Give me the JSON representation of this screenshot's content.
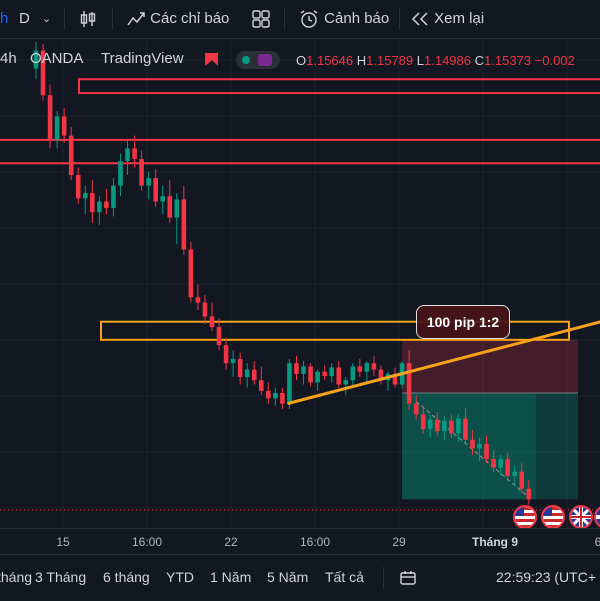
{
  "toolbar": {
    "symbol_fragment": "h",
    "interval": "D",
    "indicators_label": "Các chỉ báo",
    "alert_label": "Cảnh báo",
    "replay_label": "Xem lại"
  },
  "legend": {
    "interval": "4h",
    "source": "OANDA",
    "publisher": "TradingView",
    "open_key": "O",
    "open": "1.15646",
    "high_key": "H",
    "high": "1.15789",
    "low_key": "L",
    "low": "1.14986",
    "close_key": "C",
    "close": "1.15373",
    "change": "−0.002"
  },
  "annotation": {
    "pip_label": "100 pip 1:2"
  },
  "time_axis": [
    "15",
    "16:00",
    "22",
    "16:00",
    "29",
    "Tháng 9",
    "6"
  ],
  "ranges": [
    "tháng",
    "3 Tháng",
    "6 tháng",
    "YTD",
    "1 Năm",
    "5 Năm",
    "Tất cả"
  ],
  "clock": "22:59:23 (UTC+",
  "colors": {
    "up": "#089981",
    "down": "#f23645",
    "zone": "#f23645",
    "trend": "#f7a21b",
    "bg": "#131722"
  },
  "chart_data": {
    "type": "candlestick",
    "candles": [
      [
        1.1615,
        1.164,
        1.1605,
        1.1632
      ],
      [
        1.1632,
        1.1638,
        1.1585,
        1.159
      ],
      [
        1.159,
        1.16,
        1.154,
        1.1548
      ],
      [
        1.1548,
        1.1575,
        1.154,
        1.157
      ],
      [
        1.157,
        1.1578,
        1.1545,
        1.1552
      ],
      [
        1.1552,
        1.156,
        1.151,
        1.1515
      ],
      [
        1.1515,
        1.1522,
        1.1488,
        1.1493
      ],
      [
        1.1493,
        1.1505,
        1.1478,
        1.1498
      ],
      [
        1.1498,
        1.151,
        1.147,
        1.148
      ],
      [
        1.148,
        1.1495,
        1.1468,
        1.149
      ],
      [
        1.149,
        1.1502,
        1.1478,
        1.1484
      ],
      [
        1.1484,
        1.1512,
        1.1476,
        1.1505
      ],
      [
        1.1505,
        1.1535,
        1.1495,
        1.1528
      ],
      [
        1.1528,
        1.1548,
        1.1515,
        1.154
      ],
      [
        1.154,
        1.1552,
        1.1522,
        1.153
      ],
      [
        1.153,
        1.1538,
        1.15,
        1.1505
      ],
      [
        1.1505,
        1.1518,
        1.1492,
        1.1512
      ],
      [
        1.1512,
        1.152,
        1.1485,
        1.149
      ],
      [
        1.149,
        1.1505,
        1.1478,
        1.1495
      ],
      [
        1.1495,
        1.151,
        1.147,
        1.1475
      ],
      [
        1.1475,
        1.1498,
        1.145,
        1.1492
      ],
      [
        1.1492,
        1.1505,
        1.144,
        1.1445
      ],
      [
        1.1445,
        1.1452,
        1.1395,
        1.14
      ],
      [
        1.14,
        1.1412,
        1.1388,
        1.1395
      ],
      [
        1.1395,
        1.1402,
        1.1375,
        1.1382
      ],
      [
        1.1382,
        1.1395,
        1.1368,
        1.1372
      ],
      [
        1.1372,
        1.138,
        1.135,
        1.1355
      ],
      [
        1.1355,
        1.1362,
        1.1332,
        1.1338
      ],
      [
        1.1338,
        1.135,
        1.1325,
        1.1342
      ],
      [
        1.1342,
        1.1348,
        1.1318,
        1.1325
      ],
      [
        1.1325,
        1.1338,
        1.1315,
        1.1332
      ],
      [
        1.1332,
        1.134,
        1.1318,
        1.1322
      ],
      [
        1.1322,
        1.1335,
        1.1308,
        1.1312
      ],
      [
        1.1312,
        1.132,
        1.13,
        1.1305
      ],
      [
        1.1305,
        1.1315,
        1.1298,
        1.131
      ],
      [
        1.131,
        1.1315,
        1.1295,
        1.13
      ],
      [
        1.13,
        1.1342,
        1.1295,
        1.1338
      ],
      [
        1.1338,
        1.1345,
        1.1322,
        1.1328
      ],
      [
        1.1328,
        1.134,
        1.1318,
        1.1335
      ],
      [
        1.1335,
        1.1338,
        1.1316,
        1.132
      ],
      [
        1.132,
        1.1332,
        1.1312,
        1.133
      ],
      [
        1.133,
        1.1336,
        1.1322,
        1.1326
      ],
      [
        1.1326,
        1.1338,
        1.132,
        1.1334
      ],
      [
        1.1334,
        1.134,
        1.1315,
        1.1318
      ],
      [
        1.1318,
        1.1325,
        1.1308,
        1.1322
      ],
      [
        1.1322,
        1.1338,
        1.1316,
        1.1335
      ],
      [
        1.1335,
        1.1342,
        1.1325,
        1.133
      ],
      [
        1.133,
        1.134,
        1.132,
        1.1338
      ],
      [
        1.1338,
        1.1345,
        1.1326,
        1.1332
      ],
      [
        1.1332,
        1.1336,
        1.1318,
        1.1322
      ],
      [
        1.1322,
        1.133,
        1.1312,
        1.1328
      ],
      [
        1.1328,
        1.1334,
        1.1315,
        1.1318
      ],
      [
        1.1318,
        1.134,
        1.1314,
        1.1338
      ],
      [
        1.1338,
        1.135,
        1.1294,
        1.13
      ],
      [
        1.13,
        1.1308,
        1.1285,
        1.129
      ],
      [
        1.129,
        1.1298,
        1.1272,
        1.1276
      ],
      [
        1.1276,
        1.129,
        1.1268,
        1.1285
      ],
      [
        1.1285,
        1.1292,
        1.127,
        1.1274
      ],
      [
        1.1274,
        1.1288,
        1.1266,
        1.1284
      ],
      [
        1.1284,
        1.129,
        1.1268,
        1.1272
      ],
      [
        1.1272,
        1.129,
        1.1264,
        1.1286
      ],
      [
        1.1286,
        1.1296,
        1.1262,
        1.1266
      ],
      [
        1.1266,
        1.1275,
        1.1252,
        1.1258
      ],
      [
        1.1258,
        1.1268,
        1.1246,
        1.1262
      ],
      [
        1.1262,
        1.127,
        1.1244,
        1.1248
      ],
      [
        1.1248,
        1.1256,
        1.1236,
        1.124
      ],
      [
        1.124,
        1.1252,
        1.1232,
        1.1248
      ],
      [
        1.1248,
        1.1254,
        1.1228,
        1.1232
      ],
      [
        1.1232,
        1.1242,
        1.1222,
        1.1236
      ],
      [
        1.1236,
        1.1244,
        1.1216,
        1.122
      ],
      [
        1.122,
        1.1228,
        1.1205,
        1.121
      ]
    ],
    "zones": [
      {
        "label": "upper-zone",
        "top": 1.1605,
        "bottom": 1.1592
      },
      {
        "label": "red-line-1",
        "price": 1.1548
      },
      {
        "label": "red-line-2",
        "price": 1.1526
      },
      {
        "label": "orange-zone",
        "top": 1.1377,
        "bottom": 1.136
      }
    ],
    "trendline": {
      "from_bar": 36,
      "from_price": 1.13,
      "to_bar": 70,
      "to_price": 1.1377
    },
    "position": {
      "entry": 1.131,
      "stop": 1.136,
      "target": 1.121,
      "label": "100 pip 1:2"
    },
    "x_ticks": [
      "15",
      "16:00",
      "22",
      "16:00",
      "29",
      "Tháng 9",
      "6"
    ]
  }
}
